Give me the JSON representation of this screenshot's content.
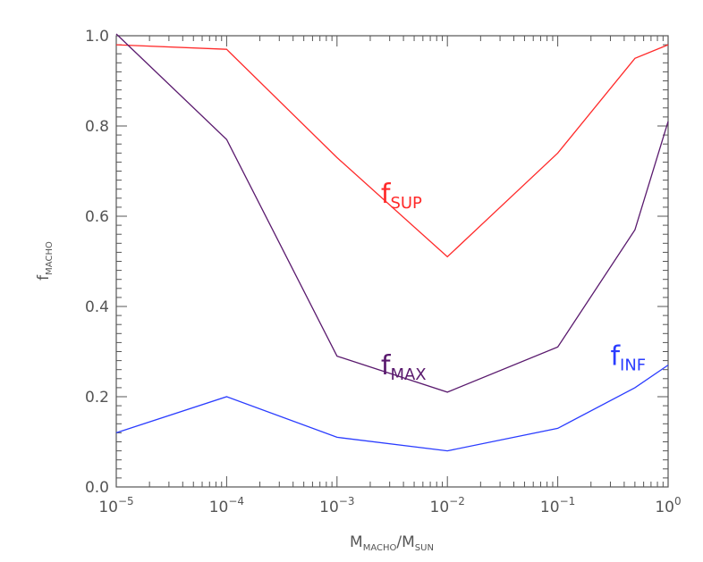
{
  "chart_data": {
    "type": "line",
    "xscale": "log",
    "xlim": [
      1e-05,
      1
    ],
    "ylim": [
      0,
      1
    ],
    "x_ticks": [
      {
        "value": 1e-05,
        "base": "10",
        "exp": "−5"
      },
      {
        "value": 0.0001,
        "base": "10",
        "exp": "−4"
      },
      {
        "value": 0.001,
        "base": "10",
        "exp": "−3"
      },
      {
        "value": 0.01,
        "base": "10",
        "exp": "−2"
      },
      {
        "value": 0.1,
        "base": "10",
        "exp": "−1"
      },
      {
        "value": 1,
        "base": "10",
        "exp": "0"
      }
    ],
    "y_ticks": [
      {
        "value": 0.0,
        "label": "0.0"
      },
      {
        "value": 0.2,
        "label": "0.2"
      },
      {
        "value": 0.4,
        "label": "0.4"
      },
      {
        "value": 0.6,
        "label": "0.6"
      },
      {
        "value": 0.8,
        "label": "0.8"
      },
      {
        "value": 1.0,
        "label": "1.0"
      }
    ],
    "xlabel": {
      "main": "M",
      "sub1": "MACHO",
      "sep": "/M",
      "sub2": "SUN"
    },
    "ylabel": {
      "main": "f",
      "sub": "MACHO"
    },
    "grid": false,
    "series": [
      {
        "name_main": "f",
        "name_sub": "SUP",
        "color": "#ff2a2a",
        "x": [
          1e-05,
          0.0001,
          0.001,
          0.01,
          0.1,
          0.5,
          1
        ],
        "y": [
          0.98,
          0.97,
          0.73,
          0.51,
          0.74,
          0.95,
          0.98
        ],
        "label_at": {
          "x": 0.0025,
          "y": 0.63
        }
      },
      {
        "name_main": "f",
        "name_sub": "MAX",
        "color": "#5a1a6e",
        "x": [
          1e-05,
          0.0001,
          0.001,
          0.01,
          0.1,
          0.5,
          1
        ],
        "y": [
          1.01,
          0.77,
          0.29,
          0.21,
          0.31,
          0.57,
          0.81
        ],
        "label_at": {
          "x": 0.0025,
          "y": 0.25
        }
      },
      {
        "name_main": "f",
        "name_sub": "INF",
        "color": "#2a3cff",
        "x": [
          1e-05,
          0.0001,
          0.001,
          0.01,
          0.1,
          0.5,
          1
        ],
        "y": [
          0.12,
          0.2,
          0.11,
          0.08,
          0.13,
          0.22,
          0.27
        ],
        "label_at": {
          "x": 0.3,
          "y": 0.27
        }
      }
    ]
  }
}
